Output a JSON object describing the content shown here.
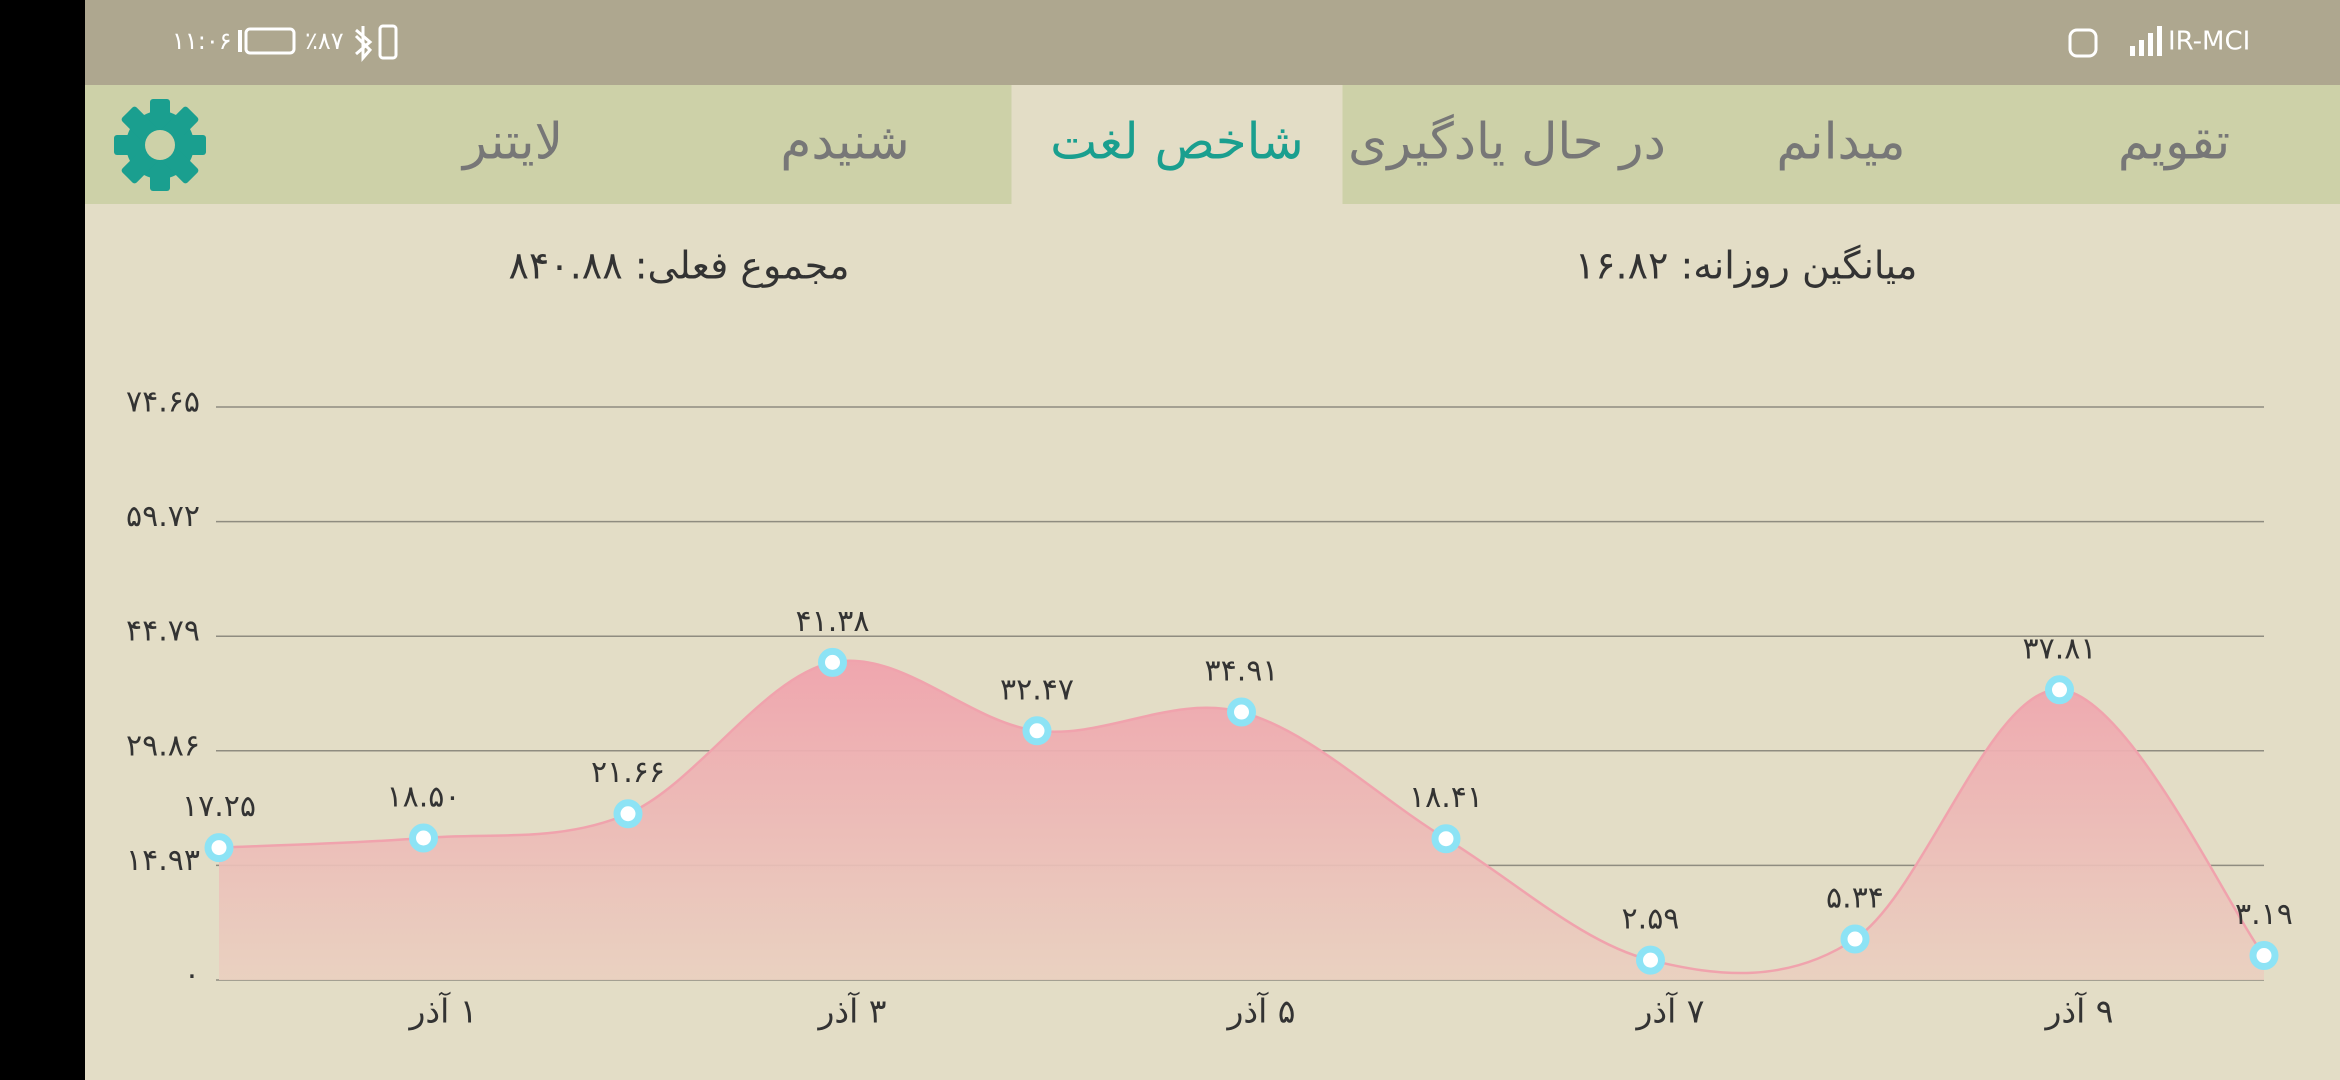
{
  "status_bar": {
    "time": "۱۱:۰۶",
    "battery": "٪۸۷",
    "carrier": "IR-MCI"
  },
  "tabs": [
    "تقویم",
    "میدانم",
    "در حال یادگیری",
    "شاخص لغت",
    "شنیدم",
    "لایتنر"
  ],
  "selected_tab": 3,
  "stats": [
    "میانگین روزانه: ۱۶.۸۲",
    "مجموع فعلی: ۸۴۰.۸۸"
  ],
  "chart_data": {
    "type": "area",
    "categories": [
      null,
      "۱ آذر",
      null,
      "۳ آذر",
      null,
      "۵ آذر",
      null,
      "۷ آذر",
      null,
      "۹ آذر",
      null
    ],
    "values": [
      17.25,
      18.5,
      21.66,
      41.38,
      32.47,
      34.91,
      18.41,
      2.59,
      5.34,
      37.81,
      3.19
    ],
    "value_labels": [
      "۱۷.۲۵",
      "۱۸.۵۰",
      "۲۱.۶۶",
      "۴۱.۳۸",
      "۳۲.۴۷",
      "۳۴.۹۱",
      "۱۸.۴۱",
      "۲.۵۹",
      "۵.۳۴",
      "۳۷.۸۱",
      "۳.۱۹"
    ],
    "color": "#f0a3ad",
    "ylim": [
      0,
      74.65
    ],
    "yticks": [
      {
        "value": 0,
        "label": "۰"
      },
      {
        "value": 14.93,
        "label": "۱۴.۹۳"
      },
      {
        "value": 29.86,
        "label": "۲۹.۸۶"
      },
      {
        "value": 44.79,
        "label": "۴۴.۷۹"
      },
      {
        "value": 59.72,
        "label": "۵۹.۷۲"
      },
      {
        "value": 74.65,
        "label": "۷۴.۶۵"
      }
    ],
    "grid": true
  }
}
